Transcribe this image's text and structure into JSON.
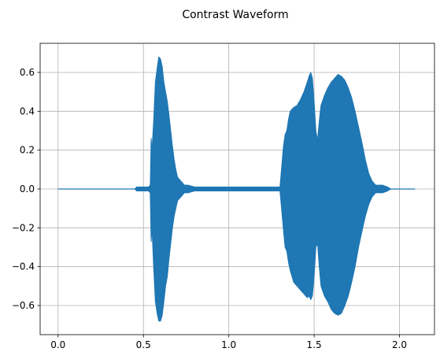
{
  "chart_data": {
    "type": "line",
    "title": "Contrast Waveform",
    "xlabel": "",
    "ylabel": "",
    "xlim": [
      -0.105,
      2.205
    ],
    "ylim": [
      -0.75,
      0.75
    ],
    "x_ticks": [
      0.0,
      0.5,
      1.0,
      1.5,
      2.0
    ],
    "x_tick_labels": [
      "0.0",
      "0.5",
      "1.0",
      "1.5",
      "2.0"
    ],
    "y_ticks": [
      -0.6,
      -0.4,
      -0.2,
      0.0,
      0.2,
      0.4,
      0.6
    ],
    "y_tick_labels": [
      "−0.6",
      "−0.4",
      "−0.2",
      "0.0",
      "0.2",
      "0.4",
      "0.6"
    ],
    "grid": true,
    "line_color": "#1f77b4",
    "series": [
      {
        "x": [
          0.0,
          0.45,
          0.46,
          0.5,
          0.53,
          0.54,
          0.545,
          0.55,
          0.56,
          0.57,
          0.58,
          0.59,
          0.6,
          0.61,
          0.62,
          0.63,
          0.64,
          0.65,
          0.66,
          0.67,
          0.68,
          0.69,
          0.7,
          0.72,
          0.74,
          0.76,
          0.8,
          0.9,
          1.0,
          1.1,
          1.2,
          1.3,
          1.32,
          1.33,
          1.34,
          1.35,
          1.36,
          1.38,
          1.4,
          1.42,
          1.44,
          1.46,
          1.47,
          1.48,
          1.49,
          1.5,
          1.51,
          1.52,
          1.53,
          1.54,
          1.56,
          1.58,
          1.6,
          1.62,
          1.64,
          1.66,
          1.68,
          1.7,
          1.72,
          1.74,
          1.76,
          1.78,
          1.8,
          1.82,
          1.84,
          1.86,
          1.88,
          1.9,
          1.93,
          1.95,
          2.0,
          2.09
        ],
        "upper": [
          0.0,
          0.0,
          0.01,
          0.01,
          0.01,
          0.02,
          0.26,
          0.2,
          0.35,
          0.55,
          0.62,
          0.68,
          0.67,
          0.63,
          0.55,
          0.5,
          0.45,
          0.38,
          0.3,
          0.22,
          0.15,
          0.1,
          0.06,
          0.04,
          0.02,
          0.02,
          0.01,
          0.01,
          0.01,
          0.01,
          0.01,
          0.01,
          0.22,
          0.28,
          0.3,
          0.36,
          0.4,
          0.42,
          0.43,
          0.46,
          0.5,
          0.55,
          0.58,
          0.6,
          0.57,
          0.45,
          0.3,
          0.25,
          0.35,
          0.43,
          0.48,
          0.52,
          0.55,
          0.57,
          0.59,
          0.58,
          0.56,
          0.52,
          0.47,
          0.4,
          0.32,
          0.24,
          0.15,
          0.08,
          0.04,
          0.02,
          0.02,
          0.02,
          0.01,
          0.0,
          0.0,
          0.0
        ],
        "lower": [
          0.0,
          0.0,
          -0.01,
          -0.01,
          -0.01,
          -0.02,
          -0.27,
          -0.2,
          -0.4,
          -0.58,
          -0.64,
          -0.68,
          -0.68,
          -0.65,
          -0.58,
          -0.5,
          -0.45,
          -0.36,
          -0.28,
          -0.2,
          -0.14,
          -0.1,
          -0.06,
          -0.04,
          -0.02,
          -0.02,
          -0.01,
          -0.01,
          -0.01,
          -0.01,
          -0.01,
          -0.01,
          -0.21,
          -0.3,
          -0.32,
          -0.38,
          -0.42,
          -0.48,
          -0.5,
          -0.52,
          -0.54,
          -0.56,
          -0.55,
          -0.57,
          -0.55,
          -0.45,
          -0.3,
          -0.28,
          -0.4,
          -0.5,
          -0.55,
          -0.58,
          -0.62,
          -0.64,
          -0.65,
          -0.64,
          -0.6,
          -0.55,
          -0.48,
          -0.4,
          -0.3,
          -0.22,
          -0.14,
          -0.08,
          -0.04,
          -0.02,
          -0.02,
          -0.02,
          -0.01,
          0.0,
          0.0,
          0.0
        ]
      }
    ]
  }
}
